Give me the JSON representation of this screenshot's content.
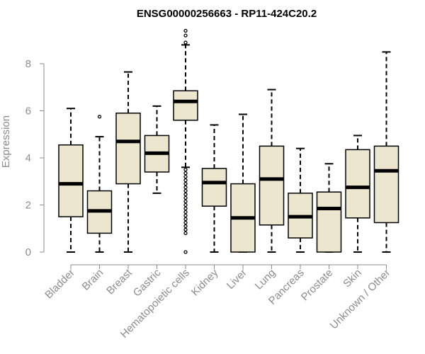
{
  "chart_data": {
    "type": "boxplot",
    "title": "ENSG00000256663 - RP11-424C20.2",
    "xlabel": "",
    "ylabel": "Expression",
    "ylim": [
      0,
      9.4
    ],
    "yticks": [
      0,
      2,
      4,
      6,
      8
    ],
    "box_fill": "#ede6cf",
    "line_color": "#000000",
    "axis_color": "#8c8c8c",
    "categories": [
      "Bladder",
      "Brain",
      "Breast",
      "Gastric",
      "Hematopoietic cells",
      "Kidney",
      "Liver",
      "Lung",
      "Pancreas",
      "Prostate",
      "Skin",
      "Unknown / Other"
    ],
    "boxes": [
      {
        "name": "Bladder",
        "min": 0,
        "q1": 1.5,
        "median": 2.9,
        "q3": 4.55,
        "max": 6.1,
        "outliers": []
      },
      {
        "name": "Brain",
        "min": 0,
        "q1": 0.8,
        "median": 1.75,
        "q3": 2.6,
        "max": 4.9,
        "outliers": [
          5.75
        ]
      },
      {
        "name": "Breast",
        "min": 0,
        "q1": 2.9,
        "median": 4.7,
        "q3": 5.9,
        "max": 7.65,
        "outliers": []
      },
      {
        "name": "Gastric",
        "min": 2.5,
        "q1": 3.4,
        "median": 4.2,
        "q3": 4.95,
        "max": 6.2,
        "outliers": []
      },
      {
        "name": "Hematopoietic cells",
        "min": 3.6,
        "q1": 5.6,
        "median": 6.4,
        "q3": 6.85,
        "max": 8.8,
        "outliers": [
          9.4,
          9.2,
          8.9,
          0.0,
          0.8,
          0.95,
          1.1,
          1.25,
          1.4,
          1.55,
          1.7,
          1.85,
          2.0,
          2.15,
          2.3,
          2.45,
          2.6,
          2.75,
          2.9,
          3.05,
          3.2,
          3.35,
          3.5
        ]
      },
      {
        "name": "Kidney",
        "min": 0,
        "q1": 1.95,
        "median": 2.95,
        "q3": 3.55,
        "max": 5.4,
        "outliers": []
      },
      {
        "name": "Liver",
        "min": 0,
        "q1": 0,
        "median": 1.45,
        "q3": 2.9,
        "max": 5.85,
        "outliers": []
      },
      {
        "name": "Lung",
        "min": 0,
        "q1": 1.15,
        "median": 3.1,
        "q3": 4.5,
        "max": 6.9,
        "outliers": []
      },
      {
        "name": "Pancreas",
        "min": 0,
        "q1": 0.6,
        "median": 1.5,
        "q3": 2.5,
        "max": 4.4,
        "outliers": []
      },
      {
        "name": "Prostate",
        "min": 0,
        "q1": 0,
        "median": 1.85,
        "q3": 2.55,
        "max": 3.75,
        "outliers": []
      },
      {
        "name": "Skin",
        "min": 0,
        "q1": 1.45,
        "median": 2.75,
        "q3": 4.35,
        "max": 4.95,
        "outliers": []
      },
      {
        "name": "Unknown / Other",
        "min": 0,
        "q1": 1.25,
        "median": 3.45,
        "q3": 4.5,
        "max": 8.5,
        "outliers": []
      }
    ]
  }
}
